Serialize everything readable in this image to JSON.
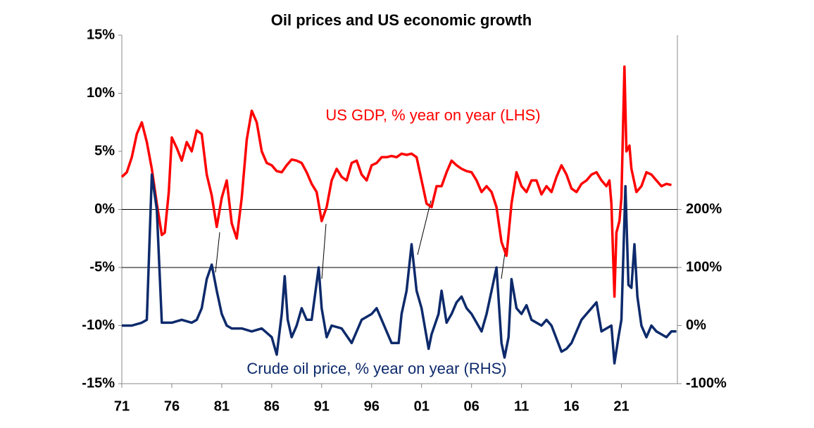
{
  "chart_data": {
    "type": "line",
    "title": "Oil prices and US economic growth",
    "xlim": [
      1971,
      2026.6
    ],
    "xticks": [
      {
        "value": 1971,
        "label": "71"
      },
      {
        "value": 1976,
        "label": "76"
      },
      {
        "value": 1981,
        "label": "81"
      },
      {
        "value": 1986,
        "label": "86"
      },
      {
        "value": 1991,
        "label": "91"
      },
      {
        "value": 1996,
        "label": "96"
      },
      {
        "value": 2001,
        "label": "01"
      },
      {
        "value": 2006,
        "label": "06"
      },
      {
        "value": 2011,
        "label": "11"
      },
      {
        "value": 2016,
        "label": "16"
      },
      {
        "value": 2021,
        "label": "21"
      }
    ],
    "ylim": [
      -15,
      15
    ],
    "yticks": [
      {
        "value": -15,
        "label": "-15%"
      },
      {
        "value": -10,
        "label": "-10%"
      },
      {
        "value": -5,
        "label": "-5%"
      },
      {
        "value": 0,
        "label": "0%"
      },
      {
        "value": 5,
        "label": "5%"
      },
      {
        "value": 10,
        "label": "10%"
      },
      {
        "value": 15,
        "label": "15%"
      }
    ],
    "y2lim": [
      -100,
      500
    ],
    "y2ticks": [
      {
        "value": -100,
        "label": "-100%"
      },
      {
        "value": 0,
        "label": "0%"
      },
      {
        "value": 100,
        "label": "100%"
      },
      {
        "value": 200,
        "label": "200%"
      }
    ],
    "hline_y": 0,
    "hline_y2": 100,
    "series": [
      {
        "name": "US GDP, % year on year (LHS)",
        "color": "#ff0000",
        "axis": "y",
        "x": [
          1971,
          1971.5,
          1972,
          1972.5,
          1973,
          1973.5,
          1974,
          1974.5,
          1975,
          1975.3,
          1975.7,
          1976,
          1976.5,
          1977,
          1977.5,
          1978,
          1978.5,
          1979,
          1979.5,
          1980,
          1980.5,
          1981,
          1981.5,
          1982,
          1982.5,
          1983,
          1983.5,
          1984,
          1984.5,
          1985,
          1985.5,
          1986,
          1986.5,
          1987,
          1987.5,
          1988,
          1988.5,
          1989,
          1989.5,
          1990,
          1990.5,
          1991,
          1991.5,
          1992,
          1992.5,
          1993,
          1993.5,
          1994,
          1994.5,
          1995,
          1995.5,
          1996,
          1996.5,
          1997,
          1997.5,
          1998,
          1998.5,
          1999,
          1999.5,
          2000,
          2000.5,
          2001,
          2001.5,
          2002,
          2002.5,
          2003,
          2003.5,
          2004,
          2004.5,
          2005,
          2005.5,
          2006,
          2006.5,
          2007,
          2007.5,
          2008,
          2008.5,
          2009,
          2009.5,
          2010,
          2010.5,
          2011,
          2011.5,
          2012,
          2012.5,
          2013,
          2013.5,
          2014,
          2014.5,
          2015,
          2015.5,
          2016,
          2016.5,
          2017,
          2017.5,
          2018,
          2018.5,
          2019,
          2019.5,
          2019.8,
          2020,
          2020.3,
          2020.5,
          2020.8,
          2021,
          2021.3,
          2021.5,
          2021.8,
          2022,
          2022.5,
          2023,
          2023.5,
          2024,
          2024.5,
          2025,
          2025.5,
          2026
        ],
        "values": [
          2.8,
          3.2,
          4.5,
          6.5,
          7.5,
          5.8,
          3.5,
          0.5,
          -2.2,
          -2.0,
          1.5,
          6.2,
          5.3,
          4.2,
          5.8,
          5.0,
          6.8,
          6.5,
          3.0,
          1.2,
          -1.5,
          1.0,
          2.5,
          -1.2,
          -2.5,
          1.0,
          6.0,
          8.5,
          7.5,
          5.0,
          4.0,
          3.8,
          3.3,
          3.2,
          3.8,
          4.3,
          4.2,
          4.0,
          3.2,
          2.2,
          1.5,
          -1.0,
          0.2,
          2.5,
          3.5,
          2.8,
          2.5,
          4.0,
          4.2,
          3.0,
          2.5,
          3.8,
          4.0,
          4.5,
          4.5,
          4.6,
          4.5,
          4.8,
          4.7,
          4.8,
          4.5,
          2.5,
          0.5,
          0.2,
          2.0,
          2.0,
          3.2,
          4.2,
          3.8,
          3.5,
          3.3,
          3.2,
          2.5,
          1.5,
          2.0,
          1.5,
          0.2,
          -2.8,
          -4.0,
          0.5,
          3.2,
          2.0,
          1.5,
          2.5,
          2.5,
          1.3,
          2.0,
          1.5,
          2.8,
          3.8,
          3.0,
          1.8,
          1.5,
          2.2,
          2.5,
          3.0,
          3.2,
          2.5,
          2.0,
          2.5,
          0.5,
          -7.5,
          -2.0,
          -1.0,
          1.0,
          12.3,
          5.0,
          5.5,
          3.5,
          1.5,
          2.0,
          3.2,
          3.0,
          2.5,
          2.0,
          2.2,
          2.1
        ]
      },
      {
        "name": "Crude oil price, % year on year (RHS)",
        "color": "#0d2a6b",
        "axis": "y2",
        "x": [
          1971,
          1972,
          1973,
          1973.5,
          1974,
          1974.5,
          1975,
          1976,
          1977,
          1978,
          1978.5,
          1979,
          1979.5,
          1980,
          1980.5,
          1981,
          1981.5,
          1982,
          1983,
          1984,
          1985,
          1986,
          1986.5,
          1987,
          1987.3,
          1987.6,
          1988,
          1988.5,
          1989,
          1989.5,
          1990,
          1990.7,
          1991,
          1991.5,
          1992,
          1993,
          1994,
          1995,
          1996,
          1996.5,
          1997,
          1998,
          1998.7,
          1999,
          1999.5,
          2000,
          2000.5,
          2001,
          2001.7,
          2002,
          2002.7,
          2003,
          2003.5,
          2004,
          2004.5,
          2005,
          2005.5,
          2006,
          2007,
          2007.5,
          2008,
          2008.5,
          2009,
          2009.3,
          2009.7,
          2010,
          2010.5,
          2011,
          2011.5,
          2012,
          2013,
          2013.5,
          2014,
          2015,
          2015.5,
          2016,
          2016.5,
          2017,
          2017.5,
          2018,
          2018.5,
          2019,
          2019.5,
          2020,
          2020.3,
          2020.7,
          2021,
          2021.4,
          2021.7,
          2022,
          2022.3,
          2022.6,
          2023,
          2023.5,
          2024,
          2024.5,
          2025,
          2025.5,
          2026,
          2026.5
        ],
        "values": [
          0,
          0,
          5,
          10,
          260,
          200,
          5,
          5,
          10,
          5,
          10,
          30,
          80,
          105,
          60,
          20,
          0,
          -5,
          -5,
          -10,
          -5,
          -20,
          -50,
          20,
          85,
          10,
          -20,
          0,
          30,
          10,
          10,
          100,
          30,
          -20,
          0,
          -5,
          -30,
          10,
          20,
          30,
          10,
          -30,
          -30,
          20,
          60,
          140,
          60,
          30,
          -40,
          -15,
          20,
          60,
          5,
          20,
          40,
          50,
          30,
          20,
          -10,
          20,
          60,
          100,
          -30,
          -55,
          -20,
          80,
          30,
          20,
          35,
          10,
          0,
          10,
          0,
          -45,
          -40,
          -30,
          -10,
          10,
          20,
          30,
          40,
          -10,
          -5,
          0,
          -65,
          -20,
          10,
          240,
          70,
          65,
          140,
          50,
          0,
          -20,
          0,
          -10,
          -15,
          -20,
          -10,
          -10
        ]
      }
    ]
  }
}
